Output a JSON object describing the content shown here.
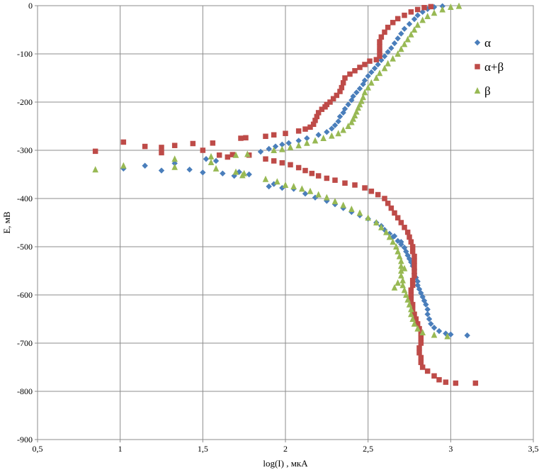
{
  "chart_data": {
    "type": "scatter",
    "title": "",
    "xlabel": "log(I) , мкА",
    "ylabel": "E, мВ",
    "xlim": [
      0.5,
      3.5
    ],
    "ylim": [
      -900,
      0
    ],
    "x_ticks": [
      0.5,
      1,
      1.5,
      2,
      2.5,
      3,
      3.5
    ],
    "x_tick_labels": [
      "0,5",
      "1",
      "1,5",
      "2",
      "2,5",
      "3",
      "3,5"
    ],
    "y_ticks": [
      0,
      -100,
      -200,
      -300,
      -400,
      -500,
      -600,
      -700,
      -800,
      -900
    ],
    "y_tick_labels": [
      "0",
      "-100",
      "-200",
      "-300",
      "-400",
      "-500",
      "-600",
      "-700",
      "-800",
      "-900"
    ],
    "grid": true,
    "legend_position": "right",
    "series": [
      {
        "name": "α",
        "color": "#4a7ebb",
        "marker": "diamond",
        "points": [
          [
            1.02,
            -338
          ],
          [
            1.15,
            -332
          ],
          [
            1.25,
            -342
          ],
          [
            1.33,
            -327
          ],
          [
            1.42,
            -340
          ],
          [
            1.5,
            -346
          ],
          [
            1.52,
            -318
          ],
          [
            1.58,
            -322
          ],
          [
            1.62,
            -348
          ],
          [
            1.69,
            -353
          ],
          [
            1.72,
            -345
          ],
          [
            1.78,
            -350
          ],
          [
            1.85,
            -303
          ],
          [
            1.9,
            -297
          ],
          [
            1.94,
            -292
          ],
          [
            1.98,
            -288
          ],
          [
            2.02,
            -285
          ],
          [
            2.08,
            -280
          ],
          [
            2.13,
            -275
          ],
          [
            2.2,
            -268
          ],
          [
            2.25,
            -262
          ],
          [
            2.28,
            -255
          ],
          [
            2.3,
            -248
          ],
          [
            2.32,
            -240
          ],
          [
            2.33,
            -230
          ],
          [
            2.35,
            -222
          ],
          [
            2.36,
            -214
          ],
          [
            2.38,
            -205
          ],
          [
            2.4,
            -196
          ],
          [
            2.41,
            -188
          ],
          [
            2.43,
            -180
          ],
          [
            2.45,
            -172
          ],
          [
            2.47,
            -163
          ],
          [
            2.48,
            -155
          ],
          [
            2.5,
            -146
          ],
          [
            2.52,
            -138
          ],
          [
            2.54,
            -130
          ],
          [
            2.56,
            -122
          ],
          [
            2.58,
            -113
          ],
          [
            2.6,
            -105
          ],
          [
            2.62,
            -96
          ],
          [
            2.64,
            -88
          ],
          [
            2.66,
            -78
          ],
          [
            2.68,
            -68
          ],
          [
            2.7,
            -58
          ],
          [
            2.72,
            -48
          ],
          [
            2.75,
            -38
          ],
          [
            2.78,
            -28
          ],
          [
            2.8,
            -20
          ],
          [
            2.83,
            -13
          ],
          [
            2.86,
            -7
          ],
          [
            2.9,
            -3
          ],
          [
            2.95,
            -1
          ],
          [
            1.9,
            -375
          ],
          [
            1.93,
            -370
          ],
          [
            1.98,
            -378
          ],
          [
            2.05,
            -380
          ],
          [
            2.12,
            -390
          ],
          [
            2.18,
            -398
          ],
          [
            2.25,
            -405
          ],
          [
            2.3,
            -412
          ],
          [
            2.35,
            -420
          ],
          [
            2.4,
            -428
          ],
          [
            2.45,
            -435
          ],
          [
            2.5,
            -442
          ],
          [
            2.55,
            -450
          ],
          [
            2.58,
            -457
          ],
          [
            2.6,
            -465
          ],
          [
            2.63,
            -473
          ],
          [
            2.65,
            -480
          ],
          [
            2.68,
            -488
          ],
          [
            2.7,
            -495
          ],
          [
            2.72,
            -502
          ],
          [
            2.73,
            -510
          ],
          [
            2.74,
            -518
          ],
          [
            2.75,
            -525
          ],
          [
            2.76,
            -532
          ],
          [
            2.77,
            -540
          ],
          [
            2.78,
            -548
          ],
          [
            2.78,
            -556
          ],
          [
            2.79,
            -564
          ],
          [
            2.8,
            -572
          ],
          [
            2.8,
            -580
          ],
          [
            2.81,
            -588
          ],
          [
            2.82,
            -596
          ],
          [
            2.83,
            -604
          ],
          [
            2.84,
            -612
          ],
          [
            2.85,
            -620
          ],
          [
            2.86,
            -630
          ],
          [
            2.86,
            -640
          ],
          [
            2.87,
            -650
          ],
          [
            2.88,
            -660
          ],
          [
            2.9,
            -668
          ],
          [
            2.93,
            -675
          ],
          [
            2.97,
            -680
          ],
          [
            3.0,
            -682
          ],
          [
            3.1,
            -684
          ],
          [
            2.7,
            -490
          ],
          [
            2.66,
            -478
          ]
        ]
      },
      {
        "name": "α+β",
        "color": "#be4b48",
        "marker": "square",
        "points": [
          [
            0.85,
            -302
          ],
          [
            1.02,
            -283
          ],
          [
            1.15,
            -292
          ],
          [
            1.25,
            -294
          ],
          [
            1.25,
            -305
          ],
          [
            1.33,
            -290
          ],
          [
            1.44,
            -286
          ],
          [
            1.5,
            -300
          ],
          [
            1.56,
            -285
          ],
          [
            1.6,
            -310
          ],
          [
            1.65,
            -314
          ],
          [
            1.68,
            -309
          ],
          [
            1.73,
            -275
          ],
          [
            1.76,
            -274
          ],
          [
            1.78,
            -310
          ],
          [
            1.88,
            -271
          ],
          [
            1.93,
            -268
          ],
          [
            2.0,
            -265
          ],
          [
            2.08,
            -260
          ],
          [
            2.12,
            -256
          ],
          [
            2.15,
            -252
          ],
          [
            2.17,
            -246
          ],
          [
            2.18,
            -238
          ],
          [
            2.19,
            -230
          ],
          [
            2.2,
            -222
          ],
          [
            2.22,
            -215
          ],
          [
            2.24,
            -210
          ],
          [
            2.25,
            -205
          ],
          [
            2.27,
            -200
          ],
          [
            2.29,
            -193
          ],
          [
            2.31,
            -186
          ],
          [
            2.33,
            -178
          ],
          [
            2.34,
            -170
          ],
          [
            2.35,
            -160
          ],
          [
            2.36,
            -150
          ],
          [
            2.39,
            -142
          ],
          [
            2.42,
            -135
          ],
          [
            2.45,
            -128
          ],
          [
            2.48,
            -122
          ],
          [
            2.51,
            -115
          ],
          [
            2.55,
            -112
          ],
          [
            2.57,
            -105
          ],
          [
            2.57,
            -95
          ],
          [
            2.57,
            -85
          ],
          [
            2.57,
            -75
          ],
          [
            2.58,
            -65
          ],
          [
            2.6,
            -55
          ],
          [
            2.62,
            -45
          ],
          [
            2.65,
            -35
          ],
          [
            2.68,
            -27
          ],
          [
            2.72,
            -20
          ],
          [
            2.76,
            -13
          ],
          [
            2.8,
            -8
          ],
          [
            2.84,
            -4
          ],
          [
            2.88,
            -2
          ],
          [
            1.88,
            -318
          ],
          [
            1.93,
            -322
          ],
          [
            1.98,
            -326
          ],
          [
            2.03,
            -330
          ],
          [
            2.08,
            -336
          ],
          [
            2.12,
            -342
          ],
          [
            2.16,
            -348
          ],
          [
            2.2,
            -353
          ],
          [
            2.25,
            -358
          ],
          [
            2.3,
            -362
          ],
          [
            2.36,
            -368
          ],
          [
            2.42,
            -372
          ],
          [
            2.48,
            -378
          ],
          [
            2.52,
            -385
          ],
          [
            2.56,
            -392
          ],
          [
            2.6,
            -400
          ],
          [
            2.62,
            -410
          ],
          [
            2.64,
            -420
          ],
          [
            2.66,
            -430
          ],
          [
            2.68,
            -440
          ],
          [
            2.7,
            -450
          ],
          [
            2.72,
            -460
          ],
          [
            2.74,
            -470
          ],
          [
            2.75,
            -480
          ],
          [
            2.76,
            -490
          ],
          [
            2.77,
            -500
          ],
          [
            2.77,
            -510
          ],
          [
            2.78,
            -520
          ],
          [
            2.78,
            -530
          ],
          [
            2.78,
            -540
          ],
          [
            2.78,
            -550
          ],
          [
            2.78,
            -560
          ],
          [
            2.77,
            -570
          ],
          [
            2.77,
            -580
          ],
          [
            2.76,
            -590
          ],
          [
            2.76,
            -600
          ],
          [
            2.76,
            -610
          ],
          [
            2.77,
            -620
          ],
          [
            2.77,
            -630
          ],
          [
            2.78,
            -640
          ],
          [
            2.79,
            -650
          ],
          [
            2.8,
            -660
          ],
          [
            2.81,
            -670
          ],
          [
            2.82,
            -680
          ],
          [
            2.82,
            -690
          ],
          [
            2.82,
            -700
          ],
          [
            2.81,
            -710
          ],
          [
            2.81,
            -720
          ],
          [
            2.82,
            -730
          ],
          [
            2.82,
            -740
          ],
          [
            2.83,
            -750
          ],
          [
            2.86,
            -758
          ],
          [
            2.9,
            -768
          ],
          [
            2.93,
            -776
          ],
          [
            2.97,
            -781
          ],
          [
            3.03,
            -783
          ],
          [
            3.15,
            -783
          ]
        ]
      },
      {
        "name": "β",
        "color": "#98b954",
        "marker": "triangle",
        "points": [
          [
            0.85,
            -340
          ],
          [
            1.02,
            -332
          ],
          [
            1.33,
            -318
          ],
          [
            1.33,
            -335
          ],
          [
            1.55,
            -313
          ],
          [
            1.55,
            -325
          ],
          [
            1.58,
            -338
          ],
          [
            1.7,
            -310
          ],
          [
            1.7,
            -345
          ],
          [
            1.74,
            -352
          ],
          [
            1.77,
            -308
          ],
          [
            1.75,
            -348
          ],
          [
            1.93,
            -300
          ],
          [
            1.98,
            -298
          ],
          [
            2.03,
            -294
          ],
          [
            2.08,
            -290
          ],
          [
            2.13,
            -285
          ],
          [
            2.18,
            -280
          ],
          [
            2.23,
            -275
          ],
          [
            2.28,
            -270
          ],
          [
            2.32,
            -265
          ],
          [
            2.35,
            -258
          ],
          [
            2.38,
            -250
          ],
          [
            2.4,
            -242
          ],
          [
            2.41,
            -235
          ],
          [
            2.42,
            -228
          ],
          [
            2.43,
            -220
          ],
          [
            2.44,
            -212
          ],
          [
            2.45,
            -205
          ],
          [
            2.46,
            -198
          ],
          [
            2.47,
            -190
          ],
          [
            2.48,
            -180
          ],
          [
            2.5,
            -170
          ],
          [
            2.52,
            -160
          ],
          [
            2.55,
            -150
          ],
          [
            2.57,
            -140
          ],
          [
            2.6,
            -130
          ],
          [
            2.62,
            -120
          ],
          [
            2.65,
            -110
          ],
          [
            2.68,
            -100
          ],
          [
            2.7,
            -90
          ],
          [
            2.72,
            -80
          ],
          [
            2.74,
            -70
          ],
          [
            2.76,
            -60
          ],
          [
            2.78,
            -50
          ],
          [
            2.8,
            -40
          ],
          [
            2.83,
            -30
          ],
          [
            2.86,
            -22
          ],
          [
            2.9,
            -15
          ],
          [
            2.95,
            -8
          ],
          [
            3.0,
            -3
          ],
          [
            3.05,
            -1
          ],
          [
            1.88,
            -360
          ],
          [
            1.95,
            -365
          ],
          [
            2.0,
            -372
          ],
          [
            2.05,
            -375
          ],
          [
            2.1,
            -380
          ],
          [
            2.15,
            -385
          ],
          [
            2.2,
            -392
          ],
          [
            2.25,
            -398
          ],
          [
            2.3,
            -406
          ],
          [
            2.35,
            -414
          ],
          [
            2.4,
            -422
          ],
          [
            2.45,
            -430
          ],
          [
            2.5,
            -440
          ],
          [
            2.55,
            -450
          ],
          [
            2.58,
            -460
          ],
          [
            2.61,
            -470
          ],
          [
            2.63,
            -480
          ],
          [
            2.65,
            -490
          ],
          [
            2.67,
            -500
          ],
          [
            2.68,
            -510
          ],
          [
            2.69,
            -520
          ],
          [
            2.7,
            -530
          ],
          [
            2.7,
            -540
          ],
          [
            2.7,
            -550
          ],
          [
            2.7,
            -560
          ],
          [
            2.71,
            -570
          ],
          [
            2.71,
            -580
          ],
          [
            2.72,
            -590
          ],
          [
            2.73,
            -600
          ],
          [
            2.74,
            -610
          ],
          [
            2.75,
            -620
          ],
          [
            2.76,
            -630
          ],
          [
            2.76,
            -640
          ],
          [
            2.77,
            -650
          ],
          [
            2.78,
            -660
          ],
          [
            2.8,
            -670
          ],
          [
            2.83,
            -678
          ],
          [
            2.9,
            -683
          ],
          [
            2.98,
            -686
          ],
          [
            2.66,
            -585
          ],
          [
            2.68,
            -575
          ],
          [
            2.72,
            -545
          ]
        ]
      }
    ]
  }
}
